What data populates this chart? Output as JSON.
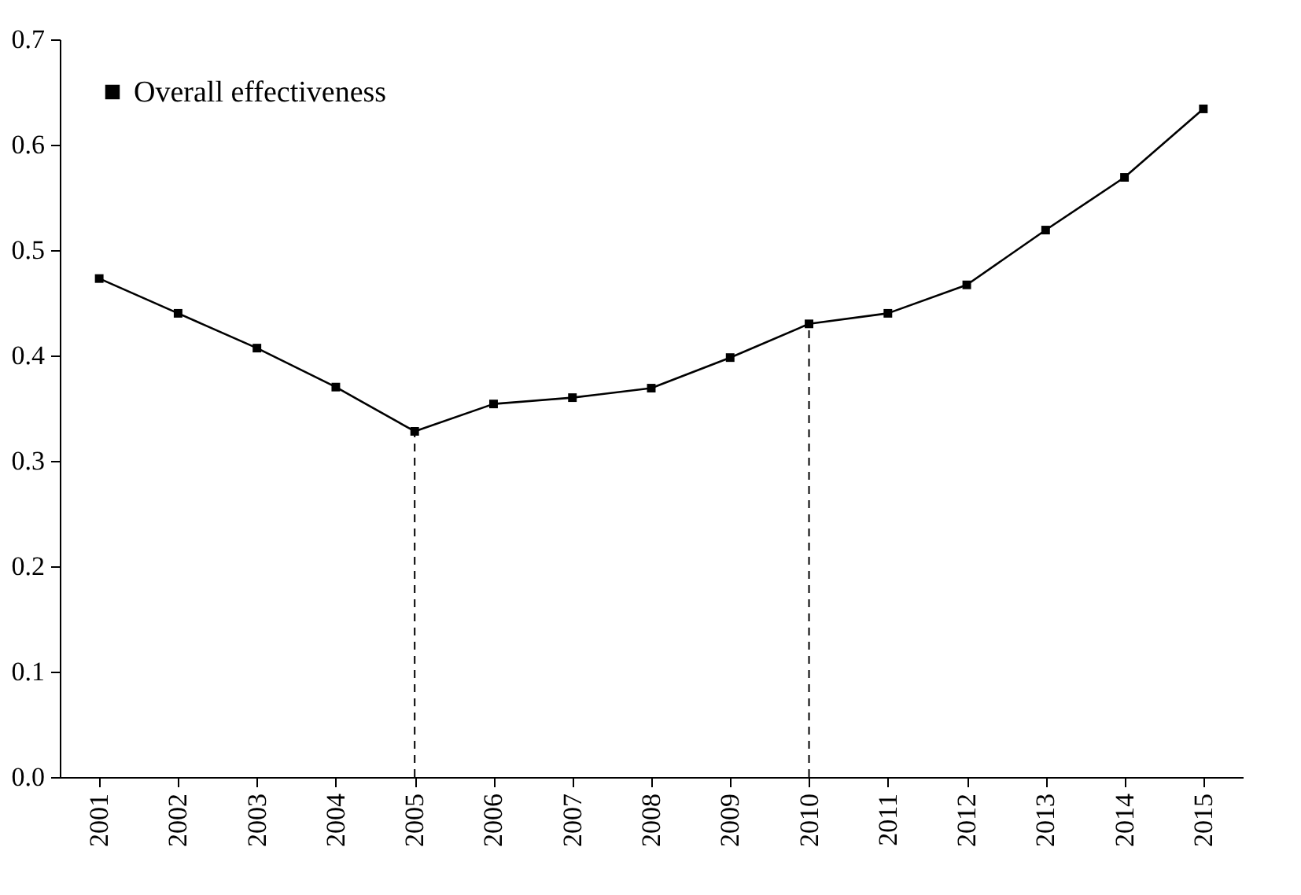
{
  "chart_data": {
    "type": "line",
    "categories": [
      "2001",
      "2002",
      "2003",
      "2004",
      "2005",
      "2006",
      "2007",
      "2008",
      "2009",
      "2010",
      "2011",
      "2012",
      "2013",
      "2014",
      "2015"
    ],
    "series": [
      {
        "name": "Overall effectiveness",
        "color": "#000000",
        "values": [
          0.473,
          0.44,
          0.407,
          0.37,
          0.328,
          0.354,
          0.36,
          0.369,
          0.398,
          0.43,
          0.44,
          0.467,
          0.519,
          0.569,
          0.634
        ]
      }
    ],
    "ylim": [
      0,
      0.7
    ],
    "yticks": [
      {
        "value": 0,
        "label": "0.0"
      },
      0.1,
      0.2,
      0.3,
      0.4,
      0.5,
      0.6,
      0.7
    ],
    "ref_lines": [
      {
        "axis": "x",
        "value": "2005",
        "line_style": "dashed"
      },
      {
        "axis": "x",
        "value": "2010",
        "line_style": "dashed"
      }
    ],
    "legend": "top left",
    "marker": "square",
    "line_style": "solid",
    "grid": false
  }
}
